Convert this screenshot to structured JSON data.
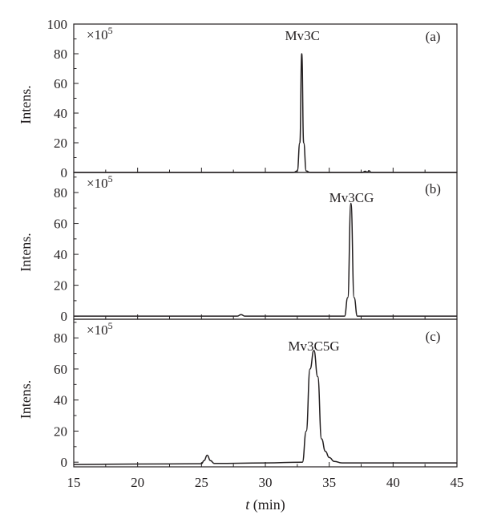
{
  "chart_data": [
    {
      "type": "line",
      "panel_tag": "(a)",
      "scale": {
        "base": "×10",
        "exponent": "5"
      },
      "peak_label": "Mv3C",
      "ylabel": "Intens.",
      "ylim": [
        0,
        100
      ],
      "yticks": [
        "0",
        "20",
        "40",
        "60",
        "80",
        "100"
      ],
      "xlim": [
        15,
        45
      ],
      "series": [
        {
          "x": [
            15,
            20,
            25,
            30,
            32.2,
            32.5,
            32.7,
            32.85,
            33.0,
            33.2,
            33.5,
            34,
            36,
            37.6,
            37.8,
            38.0,
            38.1,
            38.3,
            40,
            45
          ],
          "y": [
            0,
            0,
            0,
            0,
            0,
            1,
            20,
            80,
            20,
            1,
            0,
            0,
            0,
            0,
            0.8,
            0.2,
            1.2,
            0,
            0,
            0
          ]
        }
      ]
    },
    {
      "type": "line",
      "panel_tag": "(b)",
      "scale": {
        "base": "×10",
        "exponent": "5"
      },
      "peak_label": "Mv3CG",
      "ylabel": "Intens.",
      "ylim": [
        -2,
        93
      ],
      "yticks": [
        "0",
        "20",
        "40",
        "60",
        "80"
      ],
      "xlim": [
        15,
        45
      ],
      "series": [
        {
          "x": [
            15,
            20,
            25,
            27.8,
            28.1,
            28.4,
            30,
            35,
            36.2,
            36.45,
            36.7,
            36.95,
            37.2,
            38,
            45
          ],
          "y": [
            0,
            0,
            0,
            0,
            1,
            0,
            0,
            0,
            0,
            12,
            73,
            12,
            0,
            0,
            0
          ]
        }
      ]
    },
    {
      "type": "line",
      "panel_tag": "(c)",
      "scale": {
        "base": "×10",
        "exponent": "5"
      },
      "peak_label": "Mv3C5G",
      "ylabel": "Intens.",
      "ylim": [
        -3,
        92
      ],
      "yticks": [
        "0",
        "20",
        "40",
        "60",
        "80"
      ],
      "xlabel": "t (min)",
      "xlim": [
        15,
        45
      ],
      "xticks": [
        "15",
        "20",
        "25",
        "30",
        "35",
        "40",
        "45"
      ],
      "series": [
        {
          "x": [
            15,
            20,
            25,
            25.2,
            25.45,
            25.7,
            26.0,
            30,
            32.9,
            33.2,
            33.5,
            33.8,
            34.1,
            34.4,
            34.7,
            35.0,
            35.4,
            36.0,
            40,
            45
          ],
          "y": [
            -1.5,
            -1.2,
            -1,
            1,
            4.5,
            1,
            -0.8,
            -0.5,
            0,
            20,
            60,
            72,
            55,
            15,
            7,
            3,
            0.5,
            -0.5,
            -0.5,
            -0.5
          ]
        }
      ]
    }
  ]
}
